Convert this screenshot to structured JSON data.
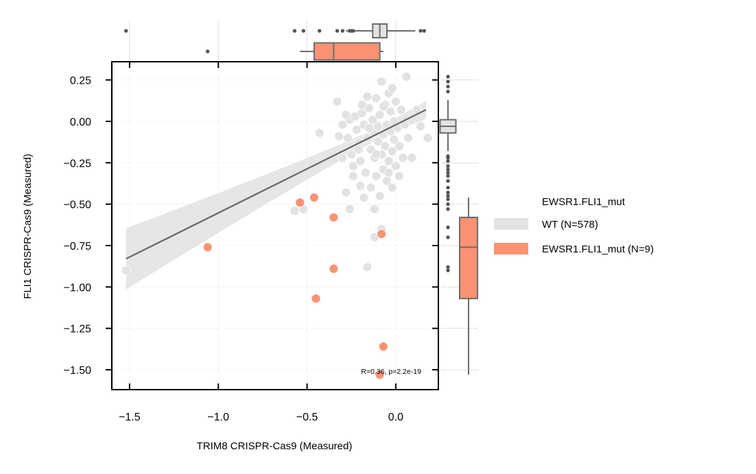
{
  "chart_data": {
    "type": "scatter",
    "xlabel": "TRIM8 CRISPR-Cas9 (Measured)",
    "ylabel": "FLI1 CRISPR-Cas9 (Measured)",
    "xlim": [
      -1.6,
      0.24
    ],
    "ylim": [
      -1.62,
      0.36
    ],
    "xticks": [
      -1.5,
      -1.0,
      -0.5,
      0.0
    ],
    "xtick_labels": [
      "−1.5",
      "−1.0",
      "−0.5",
      "0.0"
    ],
    "yticks": [
      0.25,
      0.0,
      -0.25,
      -0.5,
      -0.75,
      -1.0,
      -1.25,
      -1.5
    ],
    "ytick_labels": [
      "0.25",
      "0.00",
      "−0.25",
      "−0.50",
      "−0.75",
      "−1.00",
      "−1.25",
      "−1.50"
    ],
    "grid": true,
    "annotation": "R=0.36, p=2.2e-19",
    "legend": {
      "title": "EWSR1.FLI1_mut",
      "placement": "right",
      "entries": [
        "WT (N=578)",
        "EWSR1.FLI1_mut (N=9)"
      ]
    },
    "colors": {
      "wt": "#e2e2e2",
      "mut": "#fa9273",
      "line": "#666666",
      "band": "#e6e6e6",
      "box_edge": "#6b6b6b"
    },
    "series": [
      {
        "name": "WT (N=578)",
        "points": [
          [
            -1.52,
            -0.9
          ],
          [
            -0.57,
            -0.54
          ],
          [
            -0.52,
            -0.53
          ],
          [
            -0.43,
            -0.07
          ],
          [
            -0.33,
            0.12
          ],
          [
            -0.3,
            -0.02
          ],
          [
            -0.27,
            -0.1
          ],
          [
            -0.26,
            0.01
          ],
          [
            -0.25,
            -0.2
          ],
          [
            -0.24,
            -0.27
          ],
          [
            -0.23,
            0.03
          ],
          [
            -0.22,
            -0.05
          ],
          [
            -0.21,
            -0.13
          ],
          [
            -0.2,
            -0.24
          ],
          [
            -0.19,
            0.05
          ],
          [
            -0.18,
            -0.02
          ],
          [
            -0.17,
            -0.31
          ],
          [
            -0.16,
            -0.1
          ],
          [
            -0.15,
            0.08
          ],
          [
            -0.14,
            -0.17
          ],
          [
            -0.14,
            -0.4
          ],
          [
            -0.13,
            0.01
          ],
          [
            -0.12,
            -0.07
          ],
          [
            -0.12,
            -0.22
          ],
          [
            -0.11,
            0.14
          ],
          [
            -0.11,
            -0.33
          ],
          [
            -0.1,
            -0.03
          ],
          [
            -0.1,
            -0.12
          ],
          [
            -0.09,
            0.04
          ],
          [
            -0.09,
            -0.45
          ],
          [
            -0.08,
            -0.2
          ],
          [
            -0.08,
            0.24
          ],
          [
            -0.07,
            -0.08
          ],
          [
            -0.07,
            -0.29
          ],
          [
            -0.06,
            0.1
          ],
          [
            -0.06,
            -0.15
          ],
          [
            -0.05,
            -0.02
          ],
          [
            -0.05,
            -0.36
          ],
          [
            -0.04,
            0.17
          ],
          [
            -0.04,
            -0.24
          ],
          [
            -0.03,
            -0.06
          ],
          [
            -0.03,
            0.06
          ],
          [
            -0.02,
            -0.18
          ],
          [
            -0.02,
            -0.4
          ],
          [
            -0.01,
            0.0
          ],
          [
            -0.01,
            -0.11
          ],
          [
            0.0,
            0.12
          ],
          [
            0.0,
            -0.27
          ],
          [
            0.01,
            -0.04
          ],
          [
            0.02,
            -0.15
          ],
          [
            0.03,
            0.07
          ],
          [
            0.04,
            -0.22
          ],
          [
            0.05,
            -0.02
          ],
          [
            0.06,
            0.27
          ],
          [
            0.07,
            -0.1
          ],
          [
            0.09,
            -0.22
          ],
          [
            0.12,
            0.07
          ],
          [
            0.14,
            -0.03
          ],
          [
            0.18,
            -0.1
          ],
          [
            -0.28,
            -0.43
          ],
          [
            -0.18,
            -0.46
          ],
          [
            -0.26,
            -0.53
          ],
          [
            -0.12,
            -0.53
          ],
          [
            -0.08,
            -0.65
          ],
          [
            -0.12,
            -0.7
          ],
          [
            -0.16,
            -0.88
          ],
          [
            -0.2,
            -0.39
          ],
          [
            -0.24,
            -0.33
          ],
          [
            -0.3,
            -0.22
          ],
          [
            -0.32,
            -0.09
          ],
          [
            -0.16,
            0.15
          ],
          [
            -0.02,
            0.2
          ],
          [
            -0.07,
            0.09
          ],
          [
            -0.15,
            -0.04
          ],
          [
            -0.11,
            -0.2
          ],
          [
            -0.04,
            -0.31
          ],
          [
            0.02,
            -0.33
          ],
          [
            -0.19,
            0.1
          ],
          [
            -0.28,
            0.04
          ],
          [
            -0.21,
            -0.17
          ]
        ]
      },
      {
        "name": "EWSR1.FLI1_mut (N=9)",
        "points": [
          [
            -1.06,
            -0.76
          ],
          [
            -0.54,
            -0.49
          ],
          [
            -0.46,
            -0.46
          ],
          [
            -0.35,
            -0.58
          ],
          [
            -0.08,
            -0.68
          ],
          [
            -0.35,
            -0.89
          ],
          [
            -0.45,
            -1.07
          ],
          [
            -0.07,
            -1.36
          ],
          [
            -0.09,
            -1.53
          ]
        ]
      }
    ],
    "regression": {
      "start": [
        -1.52,
        -0.83
      ],
      "end": [
        0.17,
        0.07
      ]
    },
    "marginal_x": {
      "WT (N=578)": {
        "q1": -0.13,
        "median": -0.09,
        "q3": -0.05,
        "whisker_low": -0.28,
        "whisker_high": 0.11,
        "outliers": [
          -1.52,
          -0.57,
          -0.52,
          -0.43,
          -0.33,
          -0.3,
          -0.26,
          -0.25,
          -0.24,
          0.14,
          0.16
        ]
      },
      "EWSR1.FLI1_mut (N=9)": {
        "q1": -0.46,
        "median": -0.35,
        "q3": -0.09,
        "whisker_low": -0.54,
        "whisker_high": -0.07,
        "outliers": [
          -1.06
        ]
      }
    },
    "marginal_y": {
      "WT (N=578)": {
        "q1": -0.07,
        "median": -0.03,
        "q3": 0.01,
        "whisker_low": -0.18,
        "whisker_high": 0.13,
        "outliers": [
          0.27,
          0.24,
          0.21,
          0.18,
          -0.21,
          -0.22,
          -0.24,
          -0.27,
          -0.29,
          -0.31,
          -0.33,
          -0.36,
          -0.4,
          -0.43,
          -0.45,
          -0.47,
          -0.5,
          -0.53,
          -0.64,
          -0.7,
          -0.88,
          -0.9
        ]
      },
      "EWSR1.FLI1_mut (N=9)": {
        "q1": -1.07,
        "median": -0.76,
        "q3": -0.58,
        "whisker_low": -1.53,
        "whisker_high": -0.46,
        "outliers": []
      }
    }
  }
}
